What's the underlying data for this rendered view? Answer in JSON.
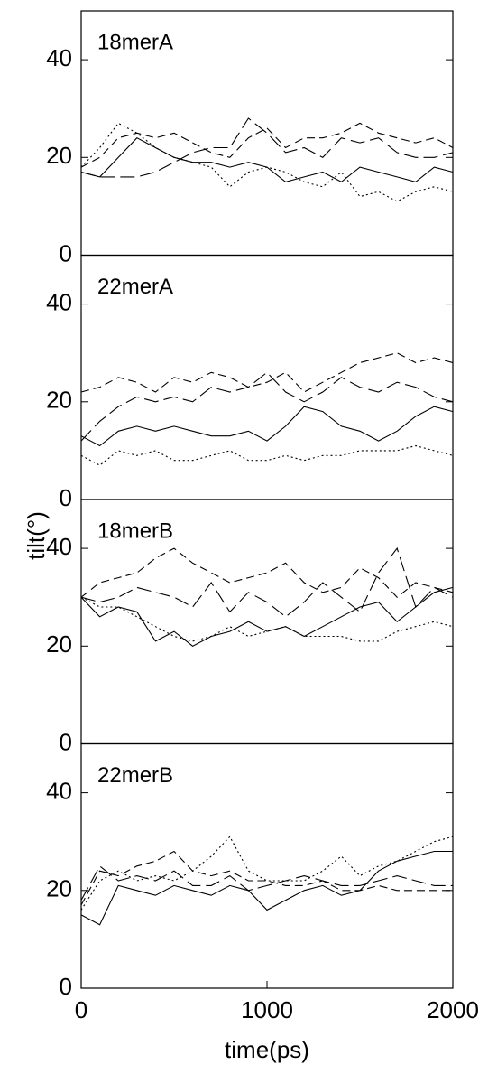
{
  "chart_data": [
    {
      "type": "line",
      "title": "18merA",
      "x": [
        0,
        100,
        200,
        300,
        400,
        500,
        600,
        700,
        800,
        900,
        1000,
        1100,
        1200,
        1300,
        1400,
        1500,
        1600,
        1700,
        1800,
        1900,
        2000
      ],
      "xlim": [
        0,
        2000
      ],
      "ylim": [
        0,
        50
      ],
      "yticks": [
        0,
        20,
        40
      ],
      "series": [
        {
          "color": "#000",
          "dash": "solid",
          "values": [
            17,
            16,
            20,
            24,
            22,
            20,
            19,
            19,
            18,
            19,
            18,
            15,
            16,
            17,
            15,
            18,
            17,
            16,
            15,
            18,
            17
          ]
        },
        {
          "color": "#000",
          "dash": "dashed",
          "values": [
            18,
            20,
            24,
            25,
            24,
            25,
            23,
            21,
            20,
            24,
            26,
            22,
            24,
            24,
            25,
            27,
            25,
            24,
            23,
            24,
            22
          ]
        },
        {
          "color": "#000",
          "dash": "longdash",
          "values": [
            17,
            16,
            16,
            16,
            17,
            19,
            21,
            22,
            22,
            28,
            25,
            21,
            22,
            20,
            24,
            23,
            24,
            21,
            20,
            20,
            21
          ]
        },
        {
          "color": "#000",
          "dash": "dotted",
          "values": [
            18,
            22,
            27,
            25,
            22,
            20,
            19,
            18,
            14,
            17,
            18,
            17,
            15,
            14,
            17,
            12,
            13,
            11,
            13,
            14,
            13
          ]
        }
      ]
    },
    {
      "type": "line",
      "title": "22merA",
      "x": [
        0,
        100,
        200,
        300,
        400,
        500,
        600,
        700,
        800,
        900,
        1000,
        1100,
        1200,
        1300,
        1400,
        1500,
        1600,
        1700,
        1800,
        1900,
        2000
      ],
      "xlim": [
        0,
        2000
      ],
      "ylim": [
        0,
        50
      ],
      "yticks": [
        0,
        20,
        40
      ],
      "series": [
        {
          "color": "#000",
          "dash": "solid",
          "values": [
            13,
            11,
            14,
            15,
            14,
            15,
            14,
            13,
            13,
            14,
            12,
            15,
            19,
            18,
            15,
            14,
            12,
            14,
            17,
            19,
            18
          ]
        },
        {
          "color": "#000",
          "dash": "dashed",
          "values": [
            22,
            23,
            25,
            24,
            22,
            25,
            24,
            26,
            25,
            23,
            24,
            26,
            22,
            24,
            26,
            28,
            29,
            30,
            28,
            29,
            28
          ]
        },
        {
          "color": "#000",
          "dash": "longdash",
          "values": [
            12,
            16,
            19,
            21,
            20,
            21,
            20,
            23,
            22,
            23,
            26,
            22,
            20,
            22,
            25,
            23,
            22,
            24,
            23,
            21,
            20
          ]
        },
        {
          "color": "#000",
          "dash": "dotted",
          "values": [
            9,
            7,
            10,
            9,
            10,
            8,
            8,
            9,
            10,
            8,
            8,
            9,
            8,
            9,
            9,
            10,
            10,
            10,
            11,
            10,
            9
          ]
        }
      ]
    },
    {
      "type": "line",
      "title": "18merB",
      "ylabel": "tilt(°)",
      "x": [
        0,
        100,
        200,
        300,
        400,
        500,
        600,
        700,
        800,
        900,
        1000,
        1100,
        1200,
        1300,
        1400,
        1500,
        1600,
        1700,
        1800,
        1900,
        2000
      ],
      "xlim": [
        0,
        2000
      ],
      "ylim": [
        0,
        50
      ],
      "yticks": [
        0,
        20,
        40
      ],
      "series": [
        {
          "color": "#000",
          "dash": "solid",
          "values": [
            30,
            26,
            28,
            27,
            21,
            23,
            20,
            22,
            23,
            25,
            23,
            24,
            22,
            24,
            26,
            28,
            29,
            25,
            28,
            31,
            32
          ]
        },
        {
          "color": "#000",
          "dash": "dashed",
          "values": [
            30,
            33,
            34,
            35,
            38,
            40,
            37,
            35,
            33,
            34,
            35,
            37,
            33,
            31,
            32,
            36,
            34,
            30,
            33,
            32,
            31
          ]
        },
        {
          "color": "#000",
          "dash": "longdash",
          "values": [
            30,
            29,
            30,
            32,
            31,
            30,
            28,
            33,
            27,
            31,
            29,
            26,
            29,
            33,
            30,
            27,
            35,
            40,
            28,
            32,
            30
          ]
        },
        {
          "color": "#000",
          "dash": "dotted",
          "values": [
            30,
            28,
            28,
            26,
            24,
            22,
            21,
            22,
            24,
            22,
            23,
            24,
            22,
            22,
            22,
            21,
            21,
            23,
            24,
            25,
            24
          ]
        }
      ]
    },
    {
      "type": "line",
      "title": "22merB",
      "xlabel": "time(ps)",
      "x": [
        0,
        100,
        200,
        300,
        400,
        500,
        600,
        700,
        800,
        900,
        1000,
        1100,
        1200,
        1300,
        1400,
        1500,
        1600,
        1700,
        1800,
        1900,
        2000
      ],
      "xlim": [
        0,
        2000
      ],
      "xticks": [
        0,
        1000,
        2000
      ],
      "ylim": [
        0,
        50
      ],
      "yticks": [
        0,
        20,
        40
      ],
      "series": [
        {
          "color": "#000",
          "dash": "solid",
          "values": [
            15,
            13,
            21,
            20,
            19,
            21,
            20,
            19,
            21,
            20,
            16,
            18,
            20,
            21,
            19,
            20,
            24,
            26,
            27,
            28,
            28
          ]
        },
        {
          "color": "#000",
          "dash": "dashed",
          "values": [
            17,
            24,
            23,
            25,
            26,
            28,
            24,
            23,
            24,
            22,
            22,
            21,
            21,
            22,
            20,
            20,
            21,
            20,
            20,
            20,
            20
          ]
        },
        {
          "color": "#000",
          "dash": "longdash",
          "values": [
            18,
            25,
            22,
            23,
            22,
            24,
            21,
            21,
            23,
            20,
            21,
            22,
            23,
            22,
            21,
            21,
            22,
            23,
            22,
            21,
            21
          ]
        },
        {
          "color": "#000",
          "dash": "dotted",
          "values": [
            16,
            22,
            24,
            22,
            23,
            22,
            24,
            27,
            31,
            24,
            22,
            22,
            22,
            24,
            27,
            23,
            25,
            26,
            28,
            30,
            31
          ]
        }
      ]
    }
  ]
}
